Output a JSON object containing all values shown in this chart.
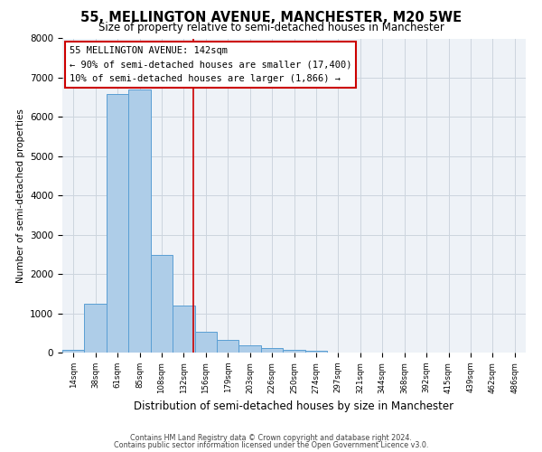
{
  "title": "55, MELLINGTON AVENUE, MANCHESTER, M20 5WE",
  "subtitle": "Size of property relative to semi-detached houses in Manchester",
  "xlabel": "Distribution of semi-detached houses by size in Manchester",
  "ylabel": "Number of semi-detached properties",
  "bar_labels": [
    "14sqm",
    "38sqm",
    "61sqm",
    "85sqm",
    "108sqm",
    "132sqm",
    "156sqm",
    "179sqm",
    "203sqm",
    "226sqm",
    "250sqm",
    "274sqm",
    "297sqm",
    "321sqm",
    "344sqm",
    "368sqm",
    "392sqm",
    "415sqm",
    "439sqm",
    "462sqm",
    "486sqm"
  ],
  "bar_values": [
    80,
    1250,
    6580,
    6700,
    2480,
    1200,
    530,
    330,
    195,
    110,
    75,
    55,
    0,
    0,
    0,
    0,
    0,
    0,
    0,
    0,
    0
  ],
  "bar_color": "#aecde8",
  "bar_edge_color": "#5a9fd4",
  "ylim": [
    0,
    8000
  ],
  "yticks": [
    0,
    1000,
    2000,
    3000,
    4000,
    5000,
    6000,
    7000,
    8000
  ],
  "property_line_x": 5.42,
  "annotation_title": "55 MELLINGTON AVENUE: 142sqm",
  "annotation_line1": "← 90% of semi-detached houses are smaller (17,400)",
  "annotation_line2": "10% of semi-detached houses are larger (1,866) →",
  "annotation_box_color": "#ffffff",
  "annotation_border_color": "#cc0000",
  "red_line_color": "#cc0000",
  "footer1": "Contains HM Land Registry data © Crown copyright and database right 2024.",
  "footer2": "Contains public sector information licensed under the Open Government Licence v3.0.",
  "bg_color": "#eef2f7",
  "grid_color": "#ccd5de"
}
